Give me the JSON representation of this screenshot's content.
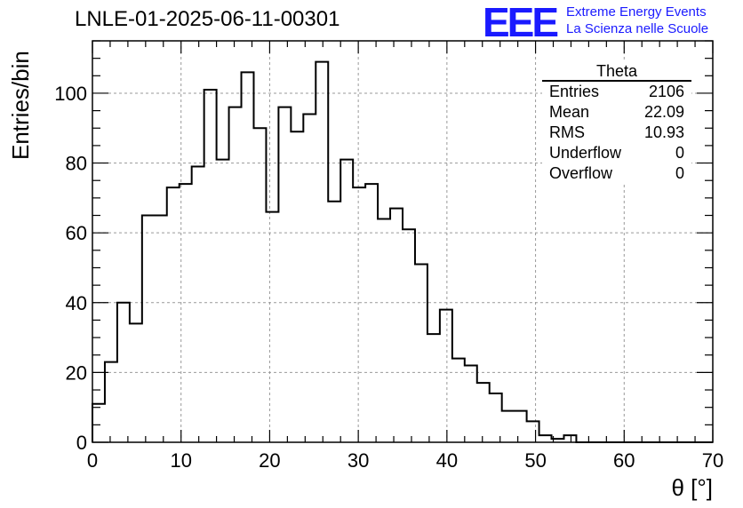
{
  "title": "LNLE-01-2025-06-11-00301",
  "logo": {
    "mark": "EEE",
    "line1": "Extreme Energy Events",
    "line2": "La Scienza nelle Scuole",
    "color": "#1a1aff"
  },
  "stats": {
    "name": "Theta",
    "rows": [
      {
        "label": "Entries",
        "value": "2106"
      },
      {
        "label": "Mean",
        "value": "22.09"
      },
      {
        "label": "RMS",
        "value": "10.93"
      },
      {
        "label": "Underflow",
        "value": "0"
      },
      {
        "label": "Overflow",
        "value": "0"
      }
    ]
  },
  "chart_data": {
    "type": "bar",
    "style": "step-histogram",
    "xlabel": "θ [°]",
    "ylabel": "Entries/bin",
    "xlim": [
      0,
      70
    ],
    "ylim": [
      0,
      115
    ],
    "xticks": [
      0,
      10,
      20,
      30,
      40,
      50,
      60,
      70
    ],
    "yticks": [
      0,
      20,
      40,
      60,
      80,
      100
    ],
    "grid": true,
    "bin_width": 1.4,
    "bin_edges_start": 0,
    "values": [
      11,
      23,
      40,
      34,
      65,
      65,
      73,
      74,
      79,
      101,
      81,
      96,
      106,
      90,
      66,
      96,
      89,
      94,
      109,
      69,
      81,
      73,
      74,
      64,
      67,
      61,
      51,
      31,
      38,
      24,
      22,
      17,
      14,
      9,
      9,
      6,
      2,
      1,
      2,
      0,
      0,
      0,
      0,
      0,
      0,
      0,
      0,
      0,
      0,
      0
    ]
  }
}
